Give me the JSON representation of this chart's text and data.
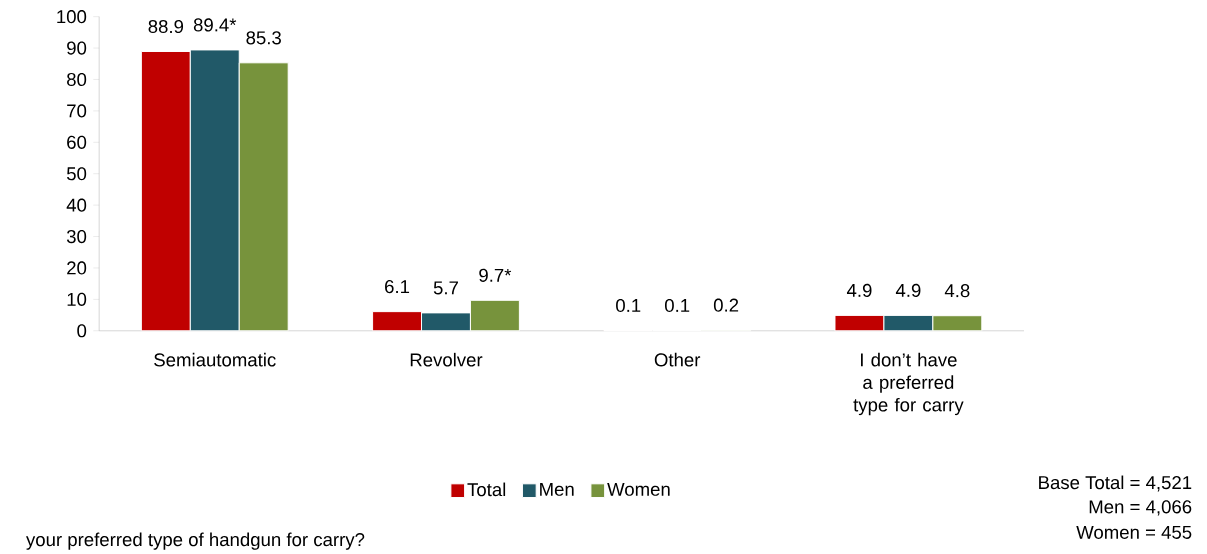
{
  "chart_data": {
    "type": "bar",
    "categories": [
      "Semiautomatic",
      "Revolver",
      "Other",
      "I don’t have a preferred type for carry"
    ],
    "series": [
      {
        "name": "Total",
        "color": "#c00000",
        "values": [
          88.9,
          6.1,
          0.1,
          4.9
        ],
        "value_labels": [
          "88.9",
          "6.1",
          "0.1",
          "4.9"
        ]
      },
      {
        "name": "Men",
        "color": "#215968",
        "values": [
          89.4,
          5.7,
          0.1,
          4.9
        ],
        "value_labels": [
          "89.4*",
          "5.7",
          "0.1",
          "4.9"
        ]
      },
      {
        "name": "Women",
        "color": "#77933c",
        "values": [
          85.3,
          9.7,
          0.2,
          4.8
        ],
        "value_labels": [
          "85.3",
          "9.7*",
          "0.2",
          "4.8"
        ]
      }
    ],
    "ylim": [
      0,
      100
    ],
    "yticks": [
      0,
      10,
      20,
      30,
      40,
      50,
      60,
      70,
      80,
      90,
      100
    ],
    "grid": false,
    "legend": "bottom",
    "annotations": [
      "Base Total = 4,521",
      "Men = 4,066",
      "Women = 455",
      "your preferred type of handgun for carry?"
    ]
  }
}
